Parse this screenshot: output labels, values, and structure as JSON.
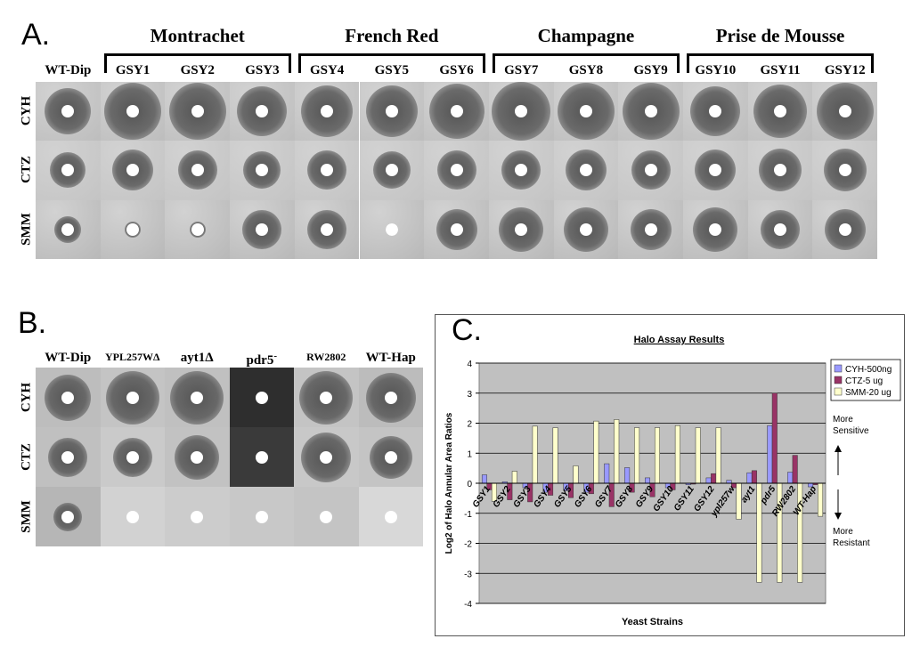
{
  "panelA": {
    "letter": "A.",
    "groups": [
      "Montrachet",
      "French Red",
      "Champagne",
      "Prise de Mousse"
    ],
    "strains": [
      "WT-Dip",
      "GSY1",
      "GSY2",
      "GSY3",
      "GSY4",
      "GSY5",
      "GSY6",
      "GSY7",
      "GSY8",
      "GSY9",
      "GSY10",
      "GSY11",
      "GSY12"
    ],
    "rows": [
      "CYH",
      "CTZ",
      "SMM"
    ]
  },
  "panelB": {
    "letter": "B.",
    "strains": [
      "WT-Dip",
      "YPL257WΔ",
      "ayt1Δ",
      "pdr5",
      "RW2802",
      "WT-Hap"
    ],
    "pdr5_superscript": "-",
    "rows": [
      "CYH",
      "CTZ",
      "SMM"
    ]
  },
  "panelC": {
    "letter": "C.",
    "annotations": {
      "sensitive_top": "More",
      "sensitive_bottom": "Sensitive",
      "resistant_top": "More",
      "resistant_bottom": "Resistant"
    }
  },
  "chart_data": {
    "type": "bar",
    "title": "Halo Assay Results",
    "xlabel": "Yeast Strains",
    "ylabel": "Log2 of Halo Annular Area Ratios",
    "ylim": [
      -4,
      4
    ],
    "yticks": [
      -4,
      -3,
      -2,
      -1,
      0,
      1,
      2,
      3,
      4
    ],
    "grid": true,
    "legend_position": "top-right",
    "categories": [
      "GSY1",
      "GSY2",
      "GSY3",
      "GSY4",
      "GSY5",
      "GSY6",
      "GSY7",
      "GSY8",
      "GSY9",
      "GSY10",
      "GSY11",
      "GSY12",
      "ypl257w",
      "ayt1",
      "pdr5",
      "RW2802",
      "WT-Hap"
    ],
    "series": [
      {
        "name": "CYH-500ng",
        "color": "#9999ff",
        "values": [
          0.28,
          0.05,
          -0.15,
          -0.3,
          -0.25,
          -0.3,
          0.65,
          0.52,
          0.18,
          -0.15,
          -0.05,
          0.18,
          0.1,
          0.35,
          1.92,
          0.37,
          -0.12
        ]
      },
      {
        "name": "CTZ-5 ug",
        "color": "#993366",
        "values": [
          -0.22,
          -0.55,
          -0.62,
          -0.4,
          -0.48,
          -0.35,
          -0.78,
          -0.3,
          -0.45,
          -0.22,
          -0.03,
          0.32,
          -0.15,
          0.42,
          3.0,
          0.93,
          -0.05
        ]
      },
      {
        "name": "SMM-20 ug",
        "color": "#ffffcc",
        "values": [
          -0.6,
          0.4,
          1.9,
          1.85,
          0.58,
          2.07,
          2.12,
          1.85,
          1.85,
          1.92,
          1.85,
          1.85,
          -1.2,
          -3.3,
          -3.3,
          -3.3,
          -1.1
        ]
      }
    ]
  }
}
